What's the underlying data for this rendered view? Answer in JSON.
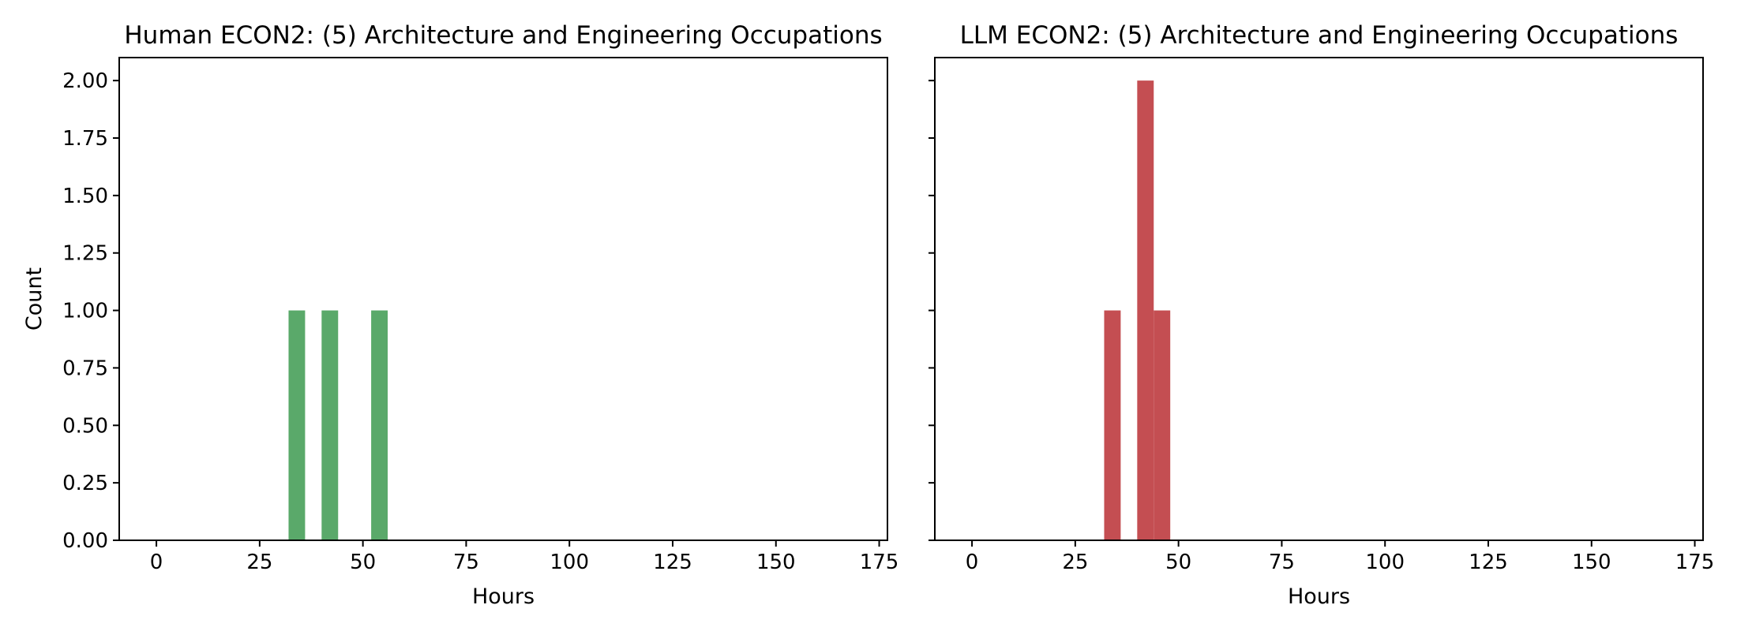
{
  "chart_data": [
    {
      "type": "bar",
      "title": "Human ECON2: (5) Architecture and Engineering Occupations",
      "xlabel": "Hours",
      "ylabel": "Count",
      "xlim": [
        -9,
        177
      ],
      "ylim": [
        0,
        2.1
      ],
      "xticks": [
        "0",
        "25",
        "50",
        "75",
        "100",
        "125",
        "150",
        "175"
      ],
      "yticks": [
        "0.00",
        "0.25",
        "0.50",
        "0.75",
        "1.00",
        "1.25",
        "1.50",
        "1.75",
        "2.00"
      ],
      "bin_width": 4,
      "bars": [
        {
          "x_start": 32,
          "x_end": 36,
          "count": 1
        },
        {
          "x_start": 40,
          "x_end": 44,
          "count": 1
        },
        {
          "x_start": 52,
          "x_end": 56,
          "count": 1
        }
      ],
      "color": "#5aa96a",
      "grid": false
    },
    {
      "type": "bar",
      "title": "LLM ECON2: (5) Architecture and Engineering Occupations",
      "xlabel": "Hours",
      "ylabel": "",
      "xlim": [
        -9,
        177
      ],
      "ylim": [
        0,
        2.1
      ],
      "xticks": [
        "0",
        "25",
        "50",
        "75",
        "100",
        "125",
        "150",
        "175"
      ],
      "yticks": [
        "",
        "",
        "",
        "",
        "",
        "",
        "",
        "",
        ""
      ],
      "bin_width": 4,
      "bars": [
        {
          "x_start": 32,
          "x_end": 36,
          "count": 1
        },
        {
          "x_start": 40,
          "x_end": 44,
          "count": 2
        },
        {
          "x_start": 44,
          "x_end": 48,
          "count": 1
        }
      ],
      "color": "#c44e52",
      "grid": false
    }
  ]
}
